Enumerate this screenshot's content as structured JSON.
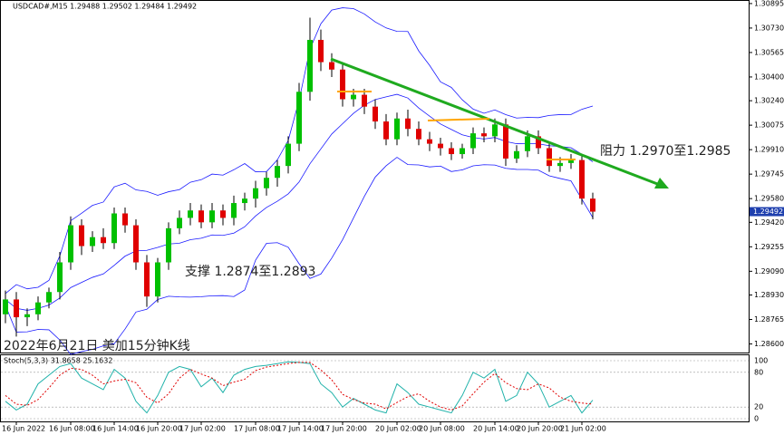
{
  "chart_data": [
    {
      "type": "candlestick",
      "title": "USDCAD#,M15  1.29488 1.29502 1.29484 1.29492",
      "categories": [
        null,
        "16 Jun 2022",
        null,
        null,
        null,
        null,
        "16 Jun 08:00",
        null,
        null,
        null,
        "16 Jun 14:00",
        null,
        null,
        null,
        "16 Jun 20:00",
        null,
        null,
        null,
        "17 Jun 02:00",
        null,
        null,
        null,
        null,
        "17 Jun 08:00",
        null,
        null,
        null,
        "17 Jun 14:00",
        null,
        null,
        null,
        "17 Jun 20:00",
        null,
        null,
        null,
        null,
        "20 Jun 02:00",
        null,
        null,
        null,
        "20 Jun 08:00",
        null,
        null,
        null,
        null,
        "20 Jun 14:00",
        null,
        null,
        null,
        "20 Jun 20:00",
        null,
        null,
        null,
        "21 Jun 02:00",
        null
      ],
      "open": [
        1.288,
        1.289,
        1.2878,
        1.288,
        1.2888,
        1.2895,
        1.2915,
        1.294,
        1.2926,
        1.2932,
        1.2928,
        1.2948,
        1.294,
        1.2915,
        1.2892,
        1.2915,
        1.2938,
        1.2945,
        1.295,
        1.2942,
        1.295,
        1.2945,
        1.2955,
        1.2958,
        1.2965,
        1.2972,
        1.298,
        1.2995,
        1.303,
        1.3065,
        1.305,
        1.3045,
        1.3025,
        1.3028,
        1.302,
        1.301,
        1.2998,
        1.3012,
        1.3005,
        1.2998,
        1.2995,
        1.2992,
        1.2988,
        1.2992,
        1.3002,
        1.3,
        1.3008,
        1.2985,
        1.299,
        1.3,
        1.2992,
        1.298,
        1.2982,
        1.2984,
        1.2958
      ],
      "high": [
        1.2896,
        1.2895,
        1.2884,
        1.2892,
        1.2898,
        1.2922,
        1.2946,
        1.2944,
        1.2936,
        1.2938,
        1.2952,
        1.2952,
        1.2944,
        1.292,
        1.2918,
        1.2942,
        1.295,
        1.2955,
        1.2954,
        1.2955,
        1.2954,
        1.296,
        1.2962,
        1.297,
        1.2976,
        1.2984,
        1.3,
        1.3036,
        1.308,
        1.3072,
        1.3056,
        1.305,
        1.3032,
        1.3032,
        1.3025,
        1.3015,
        1.3016,
        1.3018,
        1.301,
        1.3003,
        1.2999,
        1.2996,
        1.2995,
        1.3006,
        1.3006,
        1.3012,
        1.3012,
        1.2994,
        1.3004,
        1.3004,
        1.2996,
        1.2986,
        1.2988,
        1.2987,
        1.2962
      ],
      "low": [
        1.2874,
        1.2865,
        1.2872,
        1.2876,
        1.2884,
        1.289,
        1.291,
        1.292,
        1.2922,
        1.2924,
        1.2924,
        1.2935,
        1.291,
        1.2885,
        1.2888,
        1.291,
        1.2934,
        1.294,
        1.2938,
        1.2938,
        1.294,
        1.294,
        1.295,
        1.2952,
        1.296,
        1.2966,
        1.2975,
        1.299,
        1.3024,
        1.3044,
        1.304,
        1.302,
        1.302,
        1.3015,
        1.3005,
        1.2994,
        1.2994,
        1.3,
        1.2994,
        1.299,
        1.2987,
        1.2984,
        1.2985,
        1.2988,
        1.2996,
        1.2996,
        1.298,
        1.2982,
        1.2986,
        1.2988,
        1.2976,
        1.2976,
        1.2978,
        1.2954,
        1.2944
      ],
      "close": [
        1.289,
        1.2878,
        1.288,
        1.2888,
        1.2895,
        1.2915,
        1.294,
        1.2926,
        1.2932,
        1.2928,
        1.2948,
        1.294,
        1.2915,
        1.2892,
        1.2915,
        1.2938,
        1.2945,
        1.295,
        1.2942,
        1.295,
        1.2945,
        1.2955,
        1.2958,
        1.2965,
        1.2972,
        1.298,
        1.2995,
        1.303,
        1.3065,
        1.305,
        1.3045,
        1.3025,
        1.3028,
        1.302,
        1.301,
        1.2998,
        1.3012,
        1.3005,
        1.2998,
        1.2995,
        1.2992,
        1.2988,
        1.2992,
        1.3002,
        1.3,
        1.3008,
        1.2985,
        1.299,
        1.3,
        1.2992,
        1.298,
        1.2982,
        1.2984,
        1.2958,
        1.29492
      ],
      "up_color": "#00c000",
      "down_color": "#e00000",
      "band_color": "#1a1aff",
      "last_price": 1.29492,
      "ylim": [
        1.28536,
        1.30919
      ],
      "yticks": [
        1.30895,
        {
          "value": 1.3073,
          "label": "1.30730"
        },
        1.30565,
        {
          "value": 1.304,
          "label": "1.30400"
        },
        {
          "value": 1.3024,
          "label": "1.30240"
        },
        1.30075,
        {
          "value": 1.2991,
          "label": "1.29910"
        },
        1.29745,
        {
          "value": 1.2958,
          "label": "1.29580"
        },
        {
          "value": 1.2942,
          "label": "1.29420"
        },
        1.29255,
        {
          "value": 1.2909,
          "label": "1.29090"
        },
        {
          "value": 1.2893,
          "label": "1.28930"
        },
        1.28765,
        {
          "value": 1.286,
          "label": "1.28600"
        }
      ],
      "annotations": [
        "阻力 1.2970至1.2985",
        "支撑 1.2874至1.2893",
        "2022年6月21日 美加15分钟K线"
      ]
    },
    {
      "type": "line",
      "title": "Stoch(5,3,3) 31.8658 25.1632",
      "series": [
        {
          "color": "#20b2aa",
          "values": [
            30,
            15,
            25,
            60,
            75,
            90,
            95,
            70,
            60,
            50,
            85,
            70,
            30,
            10,
            40,
            80,
            90,
            85,
            55,
            70,
            45,
            75,
            85,
            90,
            92,
            95,
            98,
            97,
            95,
            60,
            45,
            20,
            35,
            25,
            15,
            10,
            60,
            45,
            25,
            20,
            15,
            10,
            40,
            80,
            70,
            85,
            30,
            40,
            80,
            60,
            20,
            30,
            40,
            10,
            31.8658
          ]
        },
        {
          "color": "#e00000",
          "values": [
            40,
            25,
            23,
            33,
            53,
            75,
            87,
            85,
            75,
            60,
            65,
            68,
            62,
            37,
            27,
            43,
            70,
            85,
            77,
            70,
            57,
            63,
            68,
            83,
            89,
            92,
            95,
            97,
            97,
            84,
            67,
            42,
            33,
            27,
            25,
            17,
            28,
            38,
            43,
            30,
            20,
            15,
            22,
            43,
            63,
            78,
            62,
            52,
            50,
            60,
            53,
            37,
            30,
            27,
            25.1632
          ]
        }
      ],
      "ylim": [
        0,
        100
      ],
      "yticks": [
        0,
        20,
        80,
        100
      ]
    }
  ]
}
